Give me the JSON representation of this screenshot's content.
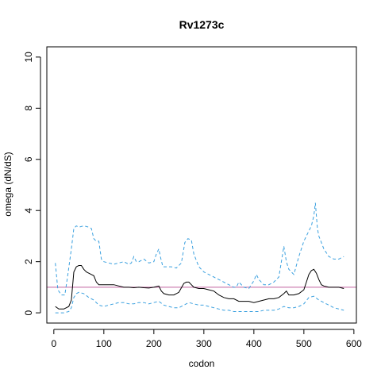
{
  "chart_data": {
    "type": "line",
    "title": "Rv1273c",
    "xlabel": "codon",
    "ylabel": "omega (dN/dS)",
    "xlim": [
      -14,
      605
    ],
    "ylim": [
      -0.4,
      10.4
    ],
    "xticks": [
      "0",
      "100",
      "200",
      "300",
      "400",
      "500",
      "600"
    ],
    "xtick_values": [
      0,
      100,
      200,
      300,
      400,
      500,
      600
    ],
    "yticks": [
      "0",
      "2",
      "4",
      "6",
      "8",
      "10"
    ],
    "ytick_values": [
      0,
      2,
      4,
      6,
      8,
      10
    ],
    "grid": false,
    "reference_line": {
      "y": 1,
      "color": "#c0609f"
    },
    "series": [
      {
        "role": "estimate",
        "color": "#000000",
        "style": "solid",
        "x": [
          3,
          10,
          20,
          30,
          35,
          40,
          45,
          50,
          55,
          60,
          65,
          70,
          75,
          80,
          85,
          90,
          100,
          110,
          120,
          130,
          140,
          150,
          160,
          170,
          180,
          190,
          200,
          210,
          215,
          220,
          230,
          240,
          250,
          260,
          265,
          270,
          275,
          280,
          290,
          300,
          310,
          320,
          330,
          340,
          350,
          360,
          370,
          380,
          390,
          400,
          410,
          420,
          430,
          440,
          450,
          460,
          465,
          470,
          480,
          490,
          500,
          505,
          510,
          515,
          520,
          525,
          530,
          535,
          540,
          550,
          560,
          570,
          580
        ],
        "y": [
          0.25,
          0.15,
          0.15,
          0.25,
          0.5,
          1.6,
          1.8,
          1.85,
          1.85,
          1.7,
          1.6,
          1.55,
          1.5,
          1.45,
          1.2,
          1.1,
          1.1,
          1.1,
          1.1,
          1.05,
          1.0,
          1.0,
          0.98,
          1.0,
          0.98,
          0.97,
          1.0,
          1.05,
          0.85,
          0.75,
          0.7,
          0.7,
          0.8,
          1.15,
          1.2,
          1.2,
          1.1,
          1.0,
          0.95,
          0.95,
          0.9,
          0.85,
          0.7,
          0.6,
          0.55,
          0.55,
          0.45,
          0.45,
          0.45,
          0.4,
          0.45,
          0.5,
          0.55,
          0.55,
          0.6,
          0.75,
          0.85,
          0.7,
          0.7,
          0.75,
          0.9,
          1.2,
          1.5,
          1.65,
          1.7,
          1.55,
          1.3,
          1.1,
          1.05,
          1.0,
          1.0,
          1.0,
          0.95
        ]
      },
      {
        "role": "upper-bound",
        "color": "#3aa0df",
        "style": "dashed",
        "x": [
          3,
          8,
          15,
          22,
          28,
          35,
          40,
          45,
          50,
          60,
          70,
          75,
          80,
          85,
          90,
          95,
          100,
          110,
          120,
          130,
          140,
          150,
          155,
          160,
          165,
          170,
          175,
          180,
          190,
          200,
          205,
          210,
          213,
          218,
          225,
          235,
          245,
          255,
          262,
          268,
          275,
          280,
          290,
          300,
          310,
          320,
          330,
          340,
          350,
          360,
          365,
          370,
          380,
          390,
          400,
          405,
          410,
          420,
          430,
          440,
          450,
          455,
          460,
          465,
          470,
          480,
          490,
          500,
          505,
          510,
          515,
          520,
          523,
          527,
          530,
          540,
          550,
          560,
          570,
          580
        ],
        "y": [
          1.95,
          0.9,
          0.7,
          0.7,
          1.5,
          2.5,
          3.3,
          3.4,
          3.35,
          3.4,
          3.35,
          3.3,
          2.9,
          2.8,
          2.8,
          2.1,
          2.0,
          1.95,
          1.9,
          1.95,
          2.0,
          1.9,
          1.95,
          2.2,
          2.0,
          2.0,
          2.05,
          2.1,
          1.95,
          2.0,
          2.3,
          2.5,
          2.2,
          1.8,
          1.8,
          1.8,
          1.75,
          1.95,
          2.75,
          2.9,
          2.85,
          2.3,
          1.8,
          1.6,
          1.5,
          1.4,
          1.3,
          1.2,
          1.1,
          1.0,
          1.0,
          1.2,
          1.0,
          0.95,
          1.25,
          1.5,
          1.3,
          1.1,
          1.1,
          1.2,
          1.4,
          2.0,
          2.6,
          2.0,
          1.7,
          1.5,
          2.2,
          2.8,
          3.0,
          3.2,
          3.4,
          3.8,
          4.3,
          3.3,
          3.0,
          2.5,
          2.2,
          2.1,
          2.1,
          2.2
        ]
      },
      {
        "role": "lower-bound",
        "color": "#3aa0df",
        "style": "dashed",
        "x": [
          3,
          10,
          20,
          30,
          35,
          40,
          45,
          50,
          60,
          70,
          80,
          90,
          100,
          110,
          120,
          130,
          140,
          150,
          160,
          170,
          180,
          190,
          200,
          210,
          220,
          230,
          240,
          250,
          260,
          270,
          280,
          290,
          300,
          310,
          320,
          330,
          340,
          350,
          360,
          370,
          380,
          390,
          400,
          410,
          420,
          430,
          440,
          450,
          460,
          470,
          480,
          490,
          500,
          510,
          520,
          530,
          540,
          550,
          560,
          570,
          580
        ],
        "y": [
          0.0,
          0.0,
          0.0,
          0.05,
          0.2,
          0.6,
          0.75,
          0.8,
          0.75,
          0.6,
          0.5,
          0.3,
          0.25,
          0.3,
          0.35,
          0.4,
          0.4,
          0.35,
          0.35,
          0.4,
          0.4,
          0.35,
          0.4,
          0.45,
          0.3,
          0.25,
          0.2,
          0.2,
          0.3,
          0.4,
          0.35,
          0.3,
          0.3,
          0.25,
          0.2,
          0.15,
          0.1,
          0.1,
          0.05,
          0.05,
          0.05,
          0.05,
          0.05,
          0.05,
          0.1,
          0.1,
          0.1,
          0.15,
          0.25,
          0.2,
          0.2,
          0.25,
          0.35,
          0.6,
          0.65,
          0.5,
          0.4,
          0.3,
          0.2,
          0.15,
          0.1
        ]
      }
    ]
  }
}
